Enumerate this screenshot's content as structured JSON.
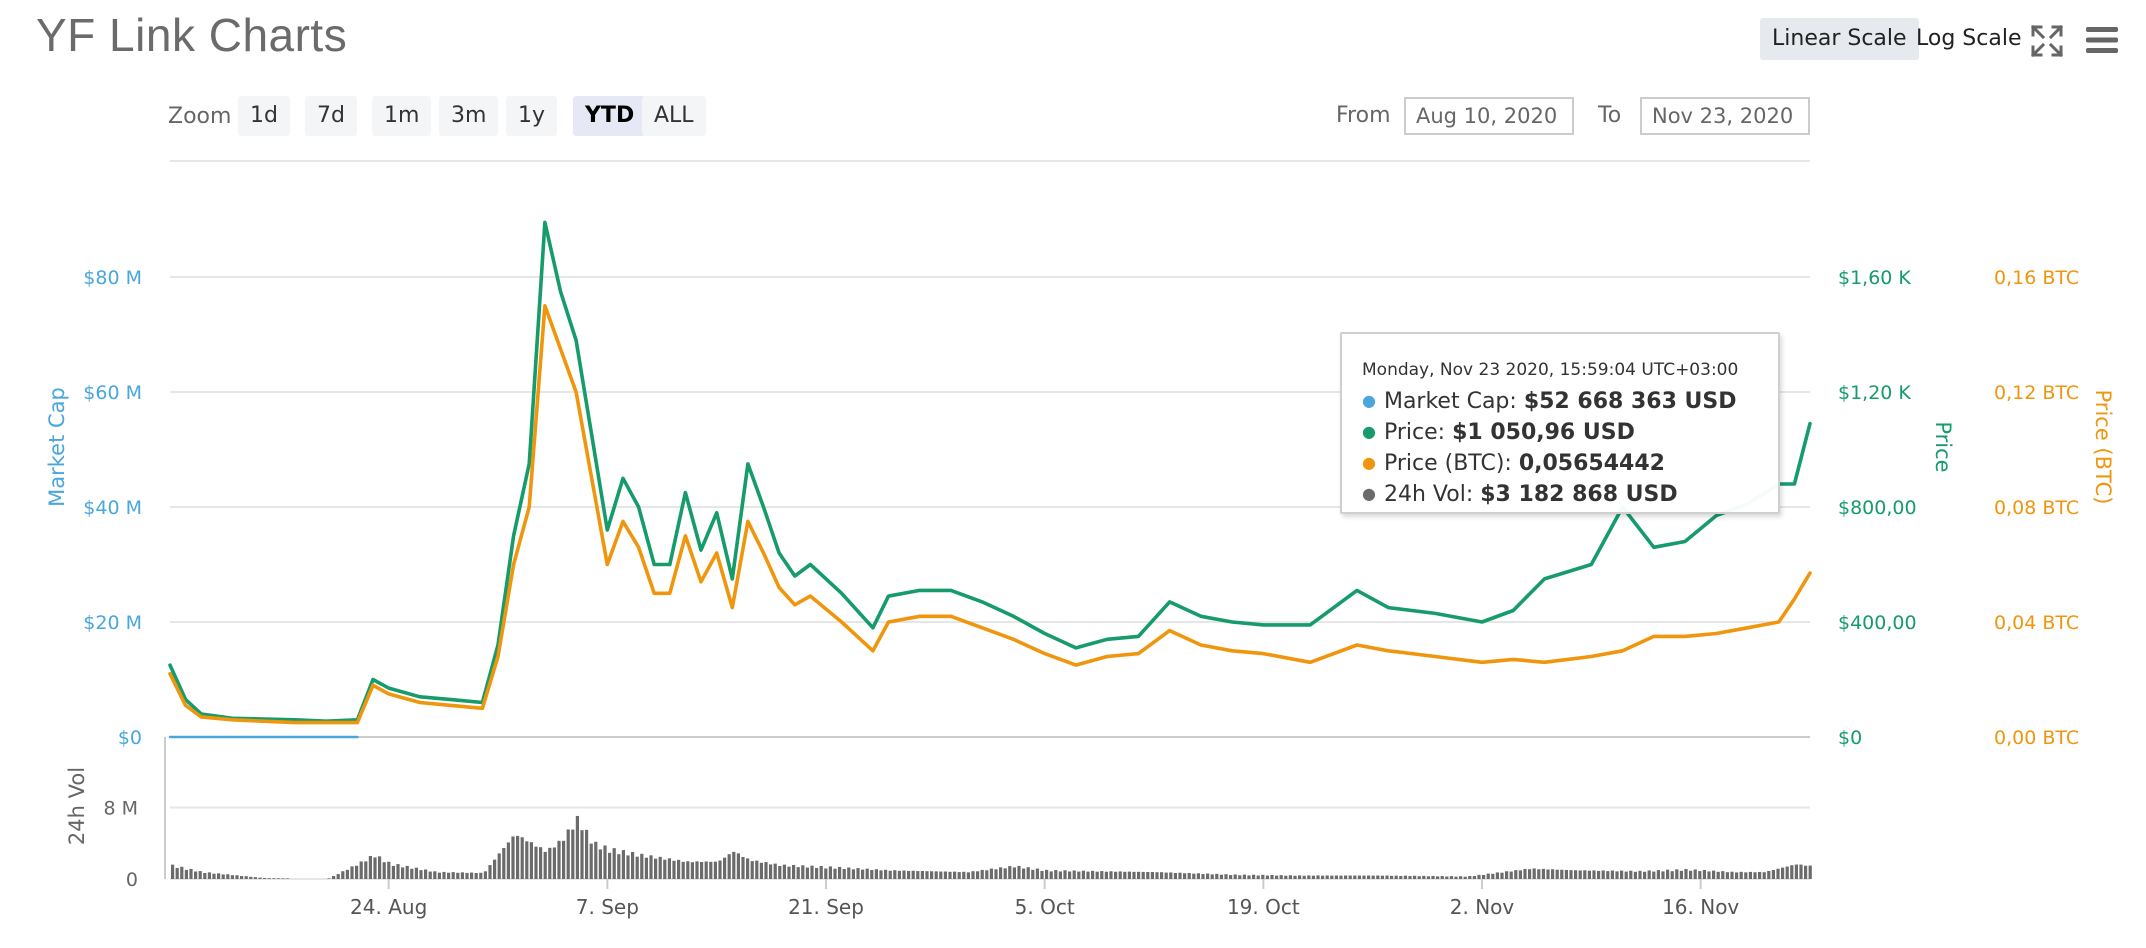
{
  "header": {
    "title": "YF Link Charts",
    "linear_scale_label": "Linear Scale",
    "log_scale_label": "Log Scale"
  },
  "icons": {
    "fullscreen": "fullscreen-icon",
    "menu": "menu-icon"
  },
  "range_selector": {
    "zoom_label": "Zoom",
    "buttons": [
      "1d",
      "7d",
      "1m",
      "3m",
      "1y",
      "YTD",
      "ALL"
    ],
    "active": "YTD",
    "from_label": "From",
    "from_value": "Aug 10, 2020",
    "to_label": "To",
    "to_value": "Nov 23, 2020"
  },
  "tooltip": {
    "date": "Monday, Nov 23 2020, 15:59:04 UTC+03:00",
    "rows": [
      {
        "label": "Market Cap:",
        "value": "$52 668 363 USD",
        "color": "#4aa7dc"
      },
      {
        "label": "Price:",
        "value": "$1 050,96 USD",
        "color": "#169b6b"
      },
      {
        "label": "Price (BTC):",
        "value": "0,05654442",
        "color": "#f0960e"
      },
      {
        "label": "24h Vol:",
        "value": "$3 182 868 USD",
        "color": "#6b6b6b"
      }
    ]
  },
  "chart_data": {
    "type": "line",
    "x_start": "2020-08-10",
    "x_end": "2020-11-23",
    "x_ticks": [
      {
        "date": "2020-08-24",
        "label": "24. Aug"
      },
      {
        "date": "2020-09-07",
        "label": "7. Sep"
      },
      {
        "date": "2020-09-21",
        "label": "21. Sep"
      },
      {
        "date": "2020-10-05",
        "label": "5. Oct"
      },
      {
        "date": "2020-10-19",
        "label": "19. Oct"
      },
      {
        "date": "2020-11-02",
        "label": "2. Nov"
      },
      {
        "date": "2020-11-16",
        "label": "16. Nov"
      }
    ],
    "axes": {
      "market_cap": {
        "label": "Market Cap",
        "color": "#4aa7dc",
        "range": [
          0,
          80000000
        ],
        "ticks": [
          "$0",
          "$20 M",
          "$40 M",
          "$60 M",
          "$80 M"
        ]
      },
      "price": {
        "label": "Price",
        "color": "#169b6b",
        "range": [
          0,
          1600
        ],
        "ticks": [
          "$0",
          "$400,00",
          "$800,00",
          "$1,20 K",
          "$1,60 K"
        ]
      },
      "price_btc": {
        "label": "Price (BTC)",
        "color": "#f0960e",
        "range": [
          0,
          0.16
        ],
        "ticks": [
          "0,00 BTC",
          "0,04 BTC",
          "0,08 BTC",
          "0,12 BTC",
          "0,16 BTC"
        ]
      },
      "volume": {
        "label": "24h Vol",
        "color": "#6b6b6b",
        "range": [
          0,
          8000000
        ],
        "ticks": [
          "0",
          "8 M"
        ]
      }
    },
    "grid": true,
    "legend": "none",
    "series": [
      {
        "name": "Price",
        "color": "#169b6b",
        "axis": "price",
        "x": [
          "2020-08-10",
          "2020-08-11",
          "2020-08-12",
          "2020-08-14",
          "2020-08-18",
          "2020-08-20",
          "2020-08-22",
          "2020-08-23",
          "2020-08-24",
          "2020-08-26",
          "2020-08-28",
          "2020-08-30",
          "2020-08-31",
          "2020-09-01",
          "2020-09-02",
          "2020-09-03",
          "2020-09-04",
          "2020-09-05",
          "2020-09-06",
          "2020-09-07",
          "2020-09-08",
          "2020-09-09",
          "2020-09-10",
          "2020-09-11",
          "2020-09-12",
          "2020-09-13",
          "2020-09-14",
          "2020-09-15",
          "2020-09-16",
          "2020-09-17",
          "2020-09-18",
          "2020-09-19",
          "2020-09-20",
          "2020-09-22",
          "2020-09-24",
          "2020-09-25",
          "2020-09-27",
          "2020-09-29",
          "2020-10-01",
          "2020-10-03",
          "2020-10-05",
          "2020-10-07",
          "2020-10-09",
          "2020-10-11",
          "2020-10-13",
          "2020-10-15",
          "2020-10-17",
          "2020-10-19",
          "2020-10-22",
          "2020-10-25",
          "2020-10-27",
          "2020-10-30",
          "2020-11-02",
          "2020-11-04",
          "2020-11-06",
          "2020-11-09",
          "2020-11-11",
          "2020-11-13",
          "2020-11-15",
          "2020-11-17",
          "2020-11-19",
          "2020-11-21",
          "2020-11-22",
          "2020-11-23"
        ],
        "values": [
          250,
          130,
          80,
          65,
          60,
          55,
          60,
          200,
          170,
          140,
          130,
          120,
          320,
          700,
          950,
          1790,
          1550,
          1380,
          1050,
          720,
          900,
          800,
          600,
          600,
          850,
          650,
          780,
          550,
          950,
          800,
          640,
          560,
          600,
          500,
          380,
          490,
          510,
          510,
          470,
          420,
          360,
          310,
          340,
          350,
          470,
          420,
          400,
          390,
          390,
          510,
          450,
          430,
          400,
          440,
          550,
          600,
          800,
          660,
          680,
          770,
          810,
          880,
          880,
          1090
        ]
      },
      {
        "name": "Price (BTC)",
        "color": "#f0960e",
        "axis": "price_btc",
        "x": [
          "2020-08-10",
          "2020-08-11",
          "2020-08-12",
          "2020-08-14",
          "2020-08-18",
          "2020-08-20",
          "2020-08-22",
          "2020-08-23",
          "2020-08-24",
          "2020-08-26",
          "2020-08-28",
          "2020-08-30",
          "2020-08-31",
          "2020-09-01",
          "2020-09-02",
          "2020-09-03",
          "2020-09-04",
          "2020-09-05",
          "2020-09-06",
          "2020-09-07",
          "2020-09-08",
          "2020-09-09",
          "2020-09-10",
          "2020-09-11",
          "2020-09-12",
          "2020-09-13",
          "2020-09-14",
          "2020-09-15",
          "2020-09-16",
          "2020-09-17",
          "2020-09-18",
          "2020-09-19",
          "2020-09-20",
          "2020-09-22",
          "2020-09-24",
          "2020-09-25",
          "2020-09-27",
          "2020-09-29",
          "2020-10-01",
          "2020-10-03",
          "2020-10-05",
          "2020-10-07",
          "2020-10-09",
          "2020-10-11",
          "2020-10-13",
          "2020-10-15",
          "2020-10-17",
          "2020-10-19",
          "2020-10-22",
          "2020-10-25",
          "2020-10-27",
          "2020-10-30",
          "2020-11-02",
          "2020-11-04",
          "2020-11-06",
          "2020-11-09",
          "2020-11-11",
          "2020-11-13",
          "2020-11-15",
          "2020-11-17",
          "2020-11-19",
          "2020-11-21",
          "2020-11-22",
          "2020-11-23"
        ],
        "values": [
          0.022,
          0.011,
          0.007,
          0.006,
          0.005,
          0.005,
          0.005,
          0.018,
          0.015,
          0.012,
          0.011,
          0.01,
          0.028,
          0.06,
          0.08,
          0.15,
          0.135,
          0.12,
          0.09,
          0.06,
          0.075,
          0.066,
          0.05,
          0.05,
          0.07,
          0.054,
          0.064,
          0.045,
          0.075,
          0.064,
          0.052,
          0.046,
          0.049,
          0.04,
          0.03,
          0.04,
          0.042,
          0.042,
          0.038,
          0.034,
          0.029,
          0.025,
          0.028,
          0.029,
          0.037,
          0.032,
          0.03,
          0.029,
          0.026,
          0.032,
          0.03,
          0.028,
          0.026,
          0.027,
          0.026,
          0.028,
          0.03,
          0.035,
          0.035,
          0.036,
          0.038,
          0.04,
          0.048,
          0.057
        ]
      },
      {
        "name": "24h Vol",
        "color": "#6b6b6b",
        "axis": "volume",
        "x": [
          "2020-08-10",
          "2020-08-12",
          "2020-08-16",
          "2020-08-20",
          "2020-08-22",
          "2020-08-23",
          "2020-08-24",
          "2020-08-27",
          "2020-08-30",
          "2020-08-31",
          "2020-09-01",
          "2020-09-03",
          "2020-09-04",
          "2020-09-05",
          "2020-09-06",
          "2020-09-07",
          "2020-09-09",
          "2020-09-12",
          "2020-09-14",
          "2020-09-15",
          "2020-09-16",
          "2020-09-18",
          "2020-09-21",
          "2020-09-25",
          "2020-09-30",
          "2020-10-03",
          "2020-10-05",
          "2020-10-08",
          "2020-10-12",
          "2020-10-17",
          "2020-10-21",
          "2020-10-26",
          "2020-11-01",
          "2020-11-05",
          "2020-11-08",
          "2020-11-12",
          "2020-11-15",
          "2020-11-18",
          "2020-11-20",
          "2020-11-22",
          "2020-11-23"
        ],
        "values": [
          1600000,
          800000,
          100000,
          0,
          1800000,
          2800000,
          1800000,
          800000,
          700000,
          3000000,
          5200000,
          3200000,
          4500000,
          7000000,
          4200000,
          3500000,
          2800000,
          2000000,
          2000000,
          3200000,
          2200000,
          1600000,
          1400000,
          1000000,
          800000,
          1500000,
          1000000,
          900000,
          800000,
          500000,
          400000,
          400000,
          300000,
          1200000,
          1000000,
          900000,
          1100000,
          800000,
          800000,
          1700000,
          1500000
        ]
      },
      {
        "name": "Market Cap",
        "color": "#4aa7dc",
        "axis": "market_cap",
        "x": [
          "2020-08-10",
          "2020-08-22"
        ],
        "values": [
          0,
          0
        ]
      }
    ]
  }
}
